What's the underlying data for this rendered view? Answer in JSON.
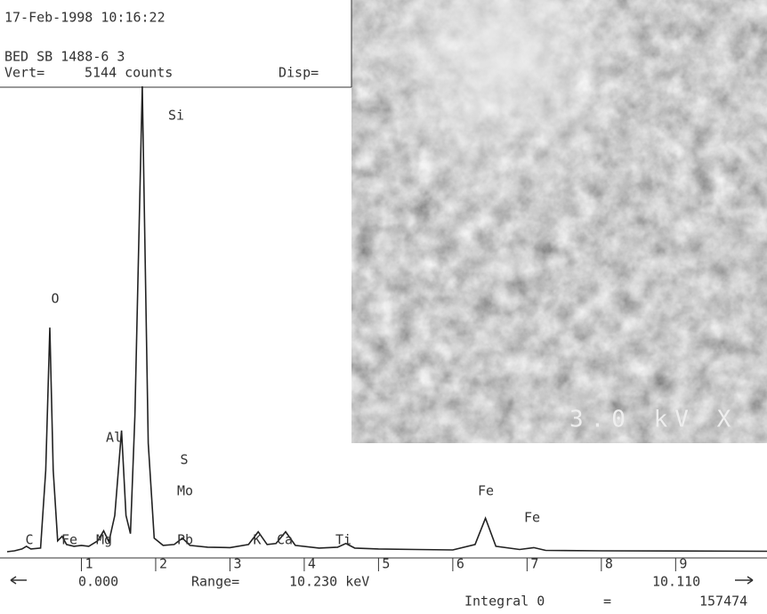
{
  "chart_data": {
    "type": "line",
    "header": {
      "timestamp": "17-Feb-1998 10:16:22",
      "sample": "BED SB 1488-6 3",
      "vert": "Vert=",
      "vert_value": "5144 counts",
      "disp": "Disp="
    },
    "x": [
      0.0,
      0.1,
      0.2,
      0.26,
      0.32,
      0.45,
      0.52,
      0.575,
      0.62,
      0.68,
      0.74,
      0.8,
      0.9,
      1.0,
      1.1,
      1.22,
      1.3,
      1.37,
      1.45,
      1.54,
      1.6,
      1.66,
      1.72,
      1.82,
      1.9,
      1.98,
      2.1,
      2.25,
      2.36,
      2.46,
      2.7,
      3.0,
      3.25,
      3.38,
      3.5,
      3.62,
      3.75,
      3.88,
      4.2,
      4.45,
      4.56,
      4.68,
      5.0,
      5.5,
      6.0,
      6.3,
      6.44,
      6.58,
      6.9,
      7.09,
      7.25,
      8.0,
      9.0,
      10.23
    ],
    "values": [
      0,
      10,
      30,
      60,
      30,
      40,
      900,
      2478,
      900,
      120,
      170,
      80,
      60,
      70,
      60,
      120,
      230,
      110,
      400,
      1340,
      400,
      200,
      1500,
      5144,
      1200,
      150,
      70,
      80,
      150,
      70,
      50,
      45,
      80,
      220,
      80,
      90,
      220,
      70,
      40,
      50,
      90,
      40,
      30,
      25,
      20,
      80,
      370,
      60,
      25,
      45,
      15,
      10,
      8,
      5
    ],
    "color": "#222222",
    "xlim": [
      0,
      10.23
    ],
    "ylim": [
      0,
      5144
    ],
    "xticks": [
      1,
      2,
      3,
      4,
      5,
      6,
      7,
      8,
      9
    ],
    "annotations": [
      "C",
      "Fe",
      "Mg",
      "Al",
      "O",
      "Si",
      "S",
      "Mo",
      "Pb",
      "K",
      "Ca",
      "Ti",
      "Fe",
      "Fe"
    ],
    "footer": {
      "start": "0.000",
      "range_label": "Range=",
      "range": "10.230 keV",
      "end": "10.110",
      "integral_label": "Integral 0",
      "equals": "=",
      "integral": "157474"
    },
    "image_caption": "3.0 kV X"
  }
}
